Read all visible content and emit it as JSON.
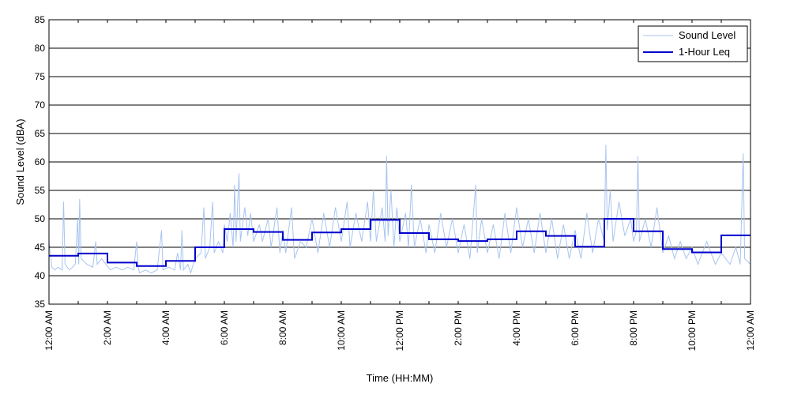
{
  "chart_data": {
    "type": "line",
    "title": "",
    "xlabel": "Time (HH:MM)",
    "ylabel": "Sound Level (dBA)",
    "xlim": [
      0,
      24
    ],
    "ylim": [
      35,
      85
    ],
    "yticks": [
      35,
      40,
      45,
      50,
      55,
      60,
      65,
      70,
      75,
      80,
      85
    ],
    "xticks": [
      {
        "hour": 0,
        "label": "12:00 AM"
      },
      {
        "hour": 2,
        "label": "2:00 AM"
      },
      {
        "hour": 4,
        "label": "4:00 AM"
      },
      {
        "hour": 6,
        "label": "6:00 AM"
      },
      {
        "hour": 8,
        "label": "8:00 AM"
      },
      {
        "hour": 10,
        "label": "10:00 AM"
      },
      {
        "hour": 12,
        "label": "12:00 PM"
      },
      {
        "hour": 14,
        "label": "2:00 PM"
      },
      {
        "hour": 16,
        "label": "4:00 PM"
      },
      {
        "hour": 18,
        "label": "6:00 PM"
      },
      {
        "hour": 20,
        "label": "8:00 PM"
      },
      {
        "hour": 22,
        "label": "10:00 PM"
      },
      {
        "hour": 24,
        "label": "12:00 AM"
      }
    ],
    "grid": {
      "horizontal": true,
      "vertical": false
    },
    "legend_position": "top-right",
    "series": [
      {
        "name": "Sound Level",
        "color": "#a8c4f0",
        "points": [
          [
            0,
            46
          ],
          [
            0.1,
            41.5
          ],
          [
            0.2,
            41
          ],
          [
            0.3,
            41.5
          ],
          [
            0.45,
            41
          ],
          [
            0.5,
            53
          ],
          [
            0.55,
            42
          ],
          [
            0.7,
            41
          ],
          [
            0.9,
            42
          ],
          [
            0.98,
            50
          ],
          [
            1.02,
            42
          ],
          [
            1.05,
            53.5
          ],
          [
            1.1,
            43
          ],
          [
            1.3,
            42
          ],
          [
            1.5,
            41.5
          ],
          [
            1.6,
            46
          ],
          [
            1.65,
            42
          ],
          [
            1.8,
            43
          ],
          [
            1.95,
            42
          ],
          [
            2.1,
            41
          ],
          [
            2.3,
            41.5
          ],
          [
            2.5,
            41
          ],
          [
            2.7,
            41.5
          ],
          [
            2.9,
            41
          ],
          [
            3.0,
            46
          ],
          [
            3.05,
            41.5
          ],
          [
            3.1,
            40.5
          ],
          [
            3.3,
            41
          ],
          [
            3.5,
            40.5
          ],
          [
            3.7,
            41
          ],
          [
            3.85,
            48
          ],
          [
            3.9,
            41
          ],
          [
            4.1,
            41.5
          ],
          [
            4.3,
            41
          ],
          [
            4.4,
            44
          ],
          [
            4.5,
            41
          ],
          [
            4.55,
            48
          ],
          [
            4.6,
            41
          ],
          [
            4.75,
            42
          ],
          [
            4.85,
            40.5
          ],
          [
            5.0,
            43
          ],
          [
            5.2,
            44
          ],
          [
            5.3,
            52
          ],
          [
            5.35,
            43
          ],
          [
            5.5,
            45
          ],
          [
            5.6,
            53
          ],
          [
            5.65,
            44
          ],
          [
            5.8,
            46
          ],
          [
            5.95,
            44
          ],
          [
            6.0,
            49
          ],
          [
            6.1,
            46
          ],
          [
            6.2,
            51
          ],
          [
            6.3,
            45
          ],
          [
            6.35,
            56
          ],
          [
            6.4,
            46
          ],
          [
            6.5,
            58
          ],
          [
            6.55,
            46
          ],
          [
            6.7,
            52
          ],
          [
            6.8,
            47
          ],
          [
            6.9,
            51
          ],
          [
            7.0,
            46
          ],
          [
            7.2,
            49
          ],
          [
            7.3,
            46
          ],
          [
            7.5,
            50
          ],
          [
            7.6,
            45
          ],
          [
            7.8,
            52
          ],
          [
            7.9,
            44
          ],
          [
            8.0,
            48
          ],
          [
            8.1,
            44
          ],
          [
            8.3,
            52
          ],
          [
            8.4,
            43
          ],
          [
            8.6,
            46
          ],
          [
            8.8,
            45
          ],
          [
            9.0,
            50
          ],
          [
            9.2,
            44
          ],
          [
            9.4,
            51
          ],
          [
            9.6,
            45
          ],
          [
            9.8,
            52
          ],
          [
            10.0,
            46
          ],
          [
            10.2,
            53
          ],
          [
            10.3,
            45
          ],
          [
            10.5,
            51
          ],
          [
            10.7,
            46
          ],
          [
            10.9,
            53
          ],
          [
            11.0,
            46
          ],
          [
            11.1,
            55
          ],
          [
            11.2,
            46
          ],
          [
            11.4,
            52
          ],
          [
            11.5,
            46
          ],
          [
            11.55,
            61
          ],
          [
            11.6,
            47
          ],
          [
            11.7,
            55
          ],
          [
            11.8,
            45
          ],
          [
            11.9,
            52
          ],
          [
            12.0,
            46
          ],
          [
            12.2,
            51
          ],
          [
            12.3,
            45
          ],
          [
            12.4,
            56
          ],
          [
            12.5,
            45
          ],
          [
            12.7,
            50
          ],
          [
            12.9,
            44
          ],
          [
            13.0,
            49
          ],
          [
            13.2,
            44
          ],
          [
            13.4,
            51
          ],
          [
            13.6,
            45
          ],
          [
            13.8,
            50
          ],
          [
            14.0,
            44
          ],
          [
            14.2,
            49
          ],
          [
            14.4,
            43
          ],
          [
            14.6,
            56
          ],
          [
            14.65,
            44
          ],
          [
            14.8,
            50
          ],
          [
            15.0,
            44
          ],
          [
            15.2,
            49
          ],
          [
            15.4,
            43
          ],
          [
            15.6,
            51
          ],
          [
            15.8,
            44
          ],
          [
            16.0,
            52
          ],
          [
            16.2,
            45
          ],
          [
            16.4,
            50
          ],
          [
            16.6,
            44
          ],
          [
            16.8,
            51
          ],
          [
            17.0,
            44
          ],
          [
            17.2,
            50
          ],
          [
            17.4,
            43
          ],
          [
            17.6,
            49
          ],
          [
            17.8,
            43
          ],
          [
            18.0,
            48
          ],
          [
            18.2,
            43
          ],
          [
            18.4,
            51
          ],
          [
            18.6,
            44
          ],
          [
            18.8,
            50
          ],
          [
            19.0,
            46
          ],
          [
            19.05,
            63
          ],
          [
            19.1,
            48
          ],
          [
            19.2,
            55
          ],
          [
            19.3,
            46
          ],
          [
            19.5,
            53
          ],
          [
            19.7,
            47
          ],
          [
            19.9,
            50
          ],
          [
            20.0,
            46
          ],
          [
            20.1,
            48
          ],
          [
            20.15,
            61
          ],
          [
            20.2,
            46
          ],
          [
            20.4,
            50
          ],
          [
            20.6,
            45
          ],
          [
            20.8,
            52
          ],
          [
            21.0,
            44
          ],
          [
            21.2,
            47
          ],
          [
            21.4,
            43
          ],
          [
            21.6,
            46
          ],
          [
            21.8,
            43
          ],
          [
            22.0,
            45
          ],
          [
            22.2,
            42
          ],
          [
            22.5,
            46
          ],
          [
            22.8,
            42
          ],
          [
            23.0,
            44
          ],
          [
            23.3,
            42
          ],
          [
            23.5,
            45
          ],
          [
            23.65,
            42
          ],
          [
            23.75,
            61.5
          ],
          [
            23.8,
            43
          ],
          [
            24.0,
            42
          ]
        ]
      },
      {
        "name": "1-Hour Leq",
        "color": "#0000cc",
        "values": [
          43.5,
          43.9,
          42.3,
          41.7,
          42.6,
          45.0,
          48.2,
          47.7,
          46.3,
          47.6,
          48.2,
          49.8,
          47.5,
          46.4,
          46.1,
          46.4,
          47.8,
          47.0,
          45.1,
          50.0,
          47.8,
          44.7,
          44.1,
          47.1
        ]
      }
    ]
  }
}
